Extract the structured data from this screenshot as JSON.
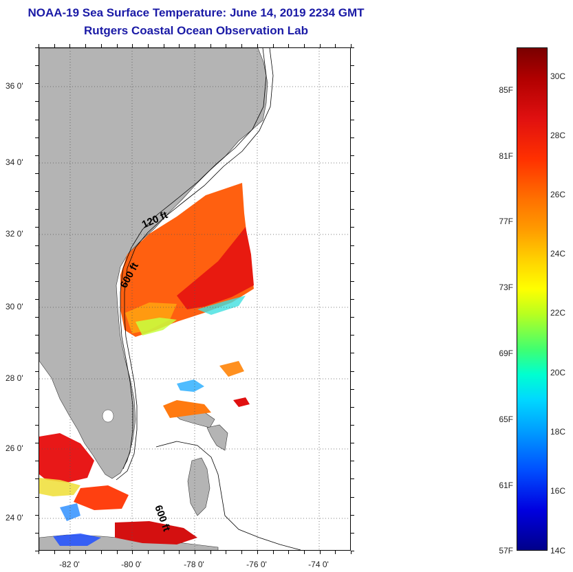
{
  "title": {
    "line1": "NOAA-19 Sea Surface Temperature:  June 14, 2019 2234 GMT",
    "line2": "Rutgers Coastal Ocean Observation Lab"
  },
  "map": {
    "latitude_labels": [
      "36 0'",
      "34 0'",
      "32 0'",
      "30 0'",
      "28 0'",
      "26 0'",
      "24 0'"
    ],
    "longitude_labels": [
      "-82 0'",
      "-80 0'",
      "-78 0'",
      "-76 0'",
      "-74 0'"
    ],
    "isobath_labels": [
      "120 ft",
      "600 ft",
      "600 ft"
    ],
    "colors": {
      "land": "#b4b4b4",
      "ocean_no_data": "#ffffff",
      "gridline": "#555555"
    }
  },
  "colorbar": {
    "fahrenheit_labels": [
      "85F",
      "81F",
      "77F",
      "73F",
      "69F",
      "65F",
      "61F",
      "57F"
    ],
    "celsius_labels": [
      "30C",
      "28C",
      "26C",
      "24C",
      "22C",
      "20C",
      "18C",
      "16C",
      "14C"
    ],
    "range_c": [
      14,
      31
    ]
  }
}
